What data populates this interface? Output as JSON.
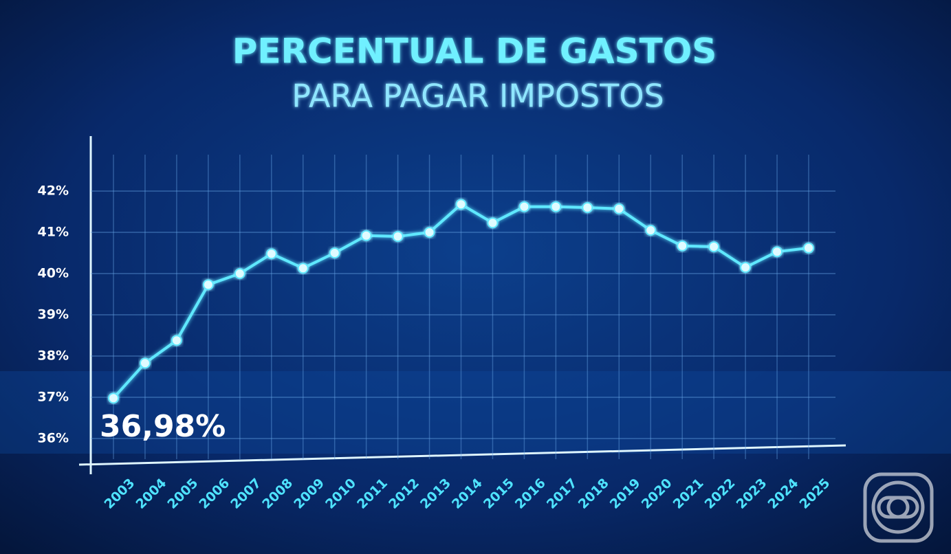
{
  "chart_data": {
    "type": "line",
    "title": "PERCENTUAL DE GASTOS",
    "subtitle": "PARA PAGAR IMPOSTOS",
    "categories": [
      "2003",
      "2004",
      "2005",
      "2006",
      "2007",
      "2008",
      "2009",
      "2010",
      "2011",
      "2012",
      "2013",
      "2014",
      "2015",
      "2016",
      "2017",
      "2018",
      "2019",
      "2020",
      "2021",
      "2022",
      "2023",
      "2024",
      "2025"
    ],
    "values": [
      36.98,
      37.83,
      38.38,
      39.73,
      40.0,
      40.48,
      40.13,
      40.5,
      40.92,
      40.9,
      41.0,
      41.68,
      41.23,
      41.62,
      41.62,
      41.6,
      41.57,
      41.05,
      40.67,
      40.65,
      40.15,
      40.53,
      40.62
    ],
    "value_labels": [
      "36,98%",
      null,
      null,
      null,
      null,
      null,
      null,
      null,
      null,
      null,
      null,
      null,
      null,
      null,
      null,
      null,
      null,
      null,
      null,
      null,
      null,
      null,
      null
    ],
    "color": "#5fe8ff",
    "ylim": [
      35.6,
      42.8
    ],
    "yticks": [
      {
        "value": 36,
        "label": "36%"
      },
      {
        "value": 37,
        "label": "37%"
      },
      {
        "value": 38,
        "label": "38%"
      },
      {
        "value": 39,
        "label": "39%"
      },
      {
        "value": 40,
        "label": "40%"
      },
      {
        "value": 41,
        "label": "41%"
      },
      {
        "value": 42,
        "label": "42%"
      }
    ],
    "grid": true
  }
}
